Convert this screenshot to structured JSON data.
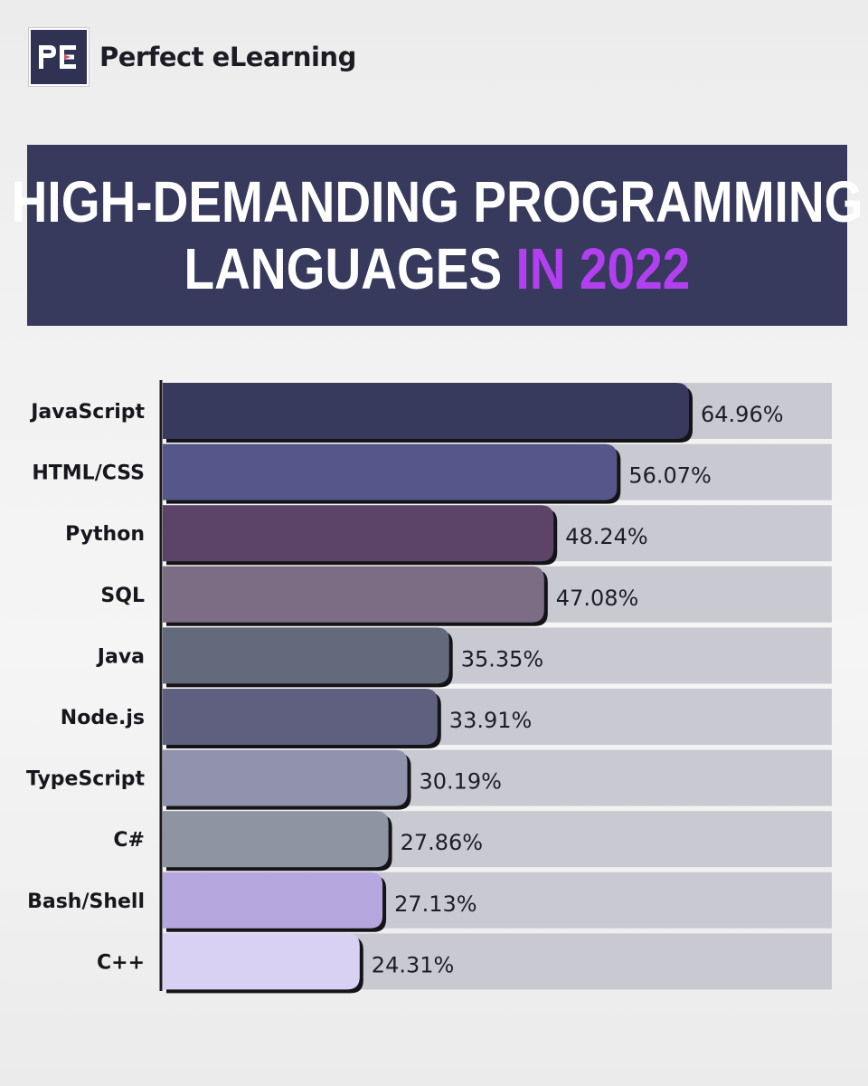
{
  "brand": {
    "logo_text": "PE",
    "name": "Perfect eLearning"
  },
  "title": {
    "line1": "HIGH-DEMANDING PROGRAMMING",
    "line2_main": "LANGUAGES ",
    "line2_accent": "IN 2022",
    "accent_color": "#b23ff0",
    "banner_color": "#373a5c"
  },
  "chart_data": {
    "type": "bar",
    "orientation": "horizontal",
    "title": "HIGH-DEMANDING PROGRAMMING LANGUAGES IN 2022",
    "categories": [
      "JavaScript",
      "HTML/CSS",
      "Python",
      "SQL",
      "Java",
      "Node.js",
      "TypeScript",
      "C#",
      "Bash/Shell",
      "C++"
    ],
    "values": [
      64.96,
      56.07,
      48.24,
      47.08,
      35.35,
      33.91,
      30.19,
      27.86,
      27.13,
      24.31
    ],
    "value_labels": [
      "64.96%",
      "56.07%",
      "48.24%",
      "47.08%",
      "35.35%",
      "33.91%",
      "30.19%",
      "27.86%",
      "27.13%",
      "24.31%"
    ],
    "unit": "%",
    "xlim": [
      0,
      100
    ],
    "bar_colors": [
      "#373a5c",
      "#55568a",
      "#5b4468",
      "#7c6c84",
      "#626a7c",
      "#5f5f80",
      "#9192ac",
      "#8e94a2",
      "#b5a6de",
      "#d9d1f3"
    ],
    "track_color": "#c9c9d2",
    "grid": false,
    "legend": "none"
  }
}
